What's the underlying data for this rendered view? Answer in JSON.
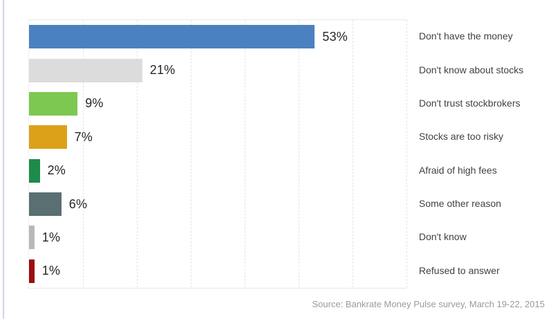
{
  "chart_data": {
    "type": "bar",
    "orientation": "horizontal",
    "title": "",
    "xlabel": "",
    "ylabel": "",
    "xlim": [
      0,
      70
    ],
    "gridline_interval_percent": 10,
    "grid": "dashed-vertical",
    "legend": "none",
    "categories": [
      "Don't have the money",
      "Don't know about stocks",
      "Don't trust stockbrokers",
      "Stocks are too risky",
      "Afraid of high fees",
      "Some other reason",
      "Don't know",
      "Refused to answer"
    ],
    "values": [
      53,
      21,
      9,
      7,
      2,
      6,
      1,
      1
    ],
    "value_labels": [
      "53%",
      "21%",
      "9%",
      "7%",
      "2%",
      "6%",
      "1%",
      "1%"
    ],
    "bar_colors": [
      "#4c81bf",
      "#dcdcdc",
      "#7dc850",
      "#dca119",
      "#1e8a4c",
      "#596f71",
      "#b8b8b8",
      "#9b0d10"
    ],
    "source": "Source: Bankrate Money Pulse survey, March 19-22, 2015"
  },
  "colors": {
    "background": "#ffffff",
    "left_rule": "#ccd3ea",
    "gridline": "#e3e3e3",
    "plot_border": "#e8e8e8",
    "value_label_text": "#262626",
    "category_label_text": "#414141",
    "source_text": "#9a9a9a"
  }
}
